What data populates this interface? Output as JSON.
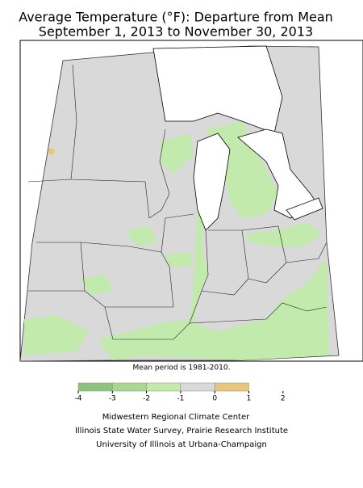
{
  "title": [
    "Average Temperature (°F): Departure from Mean",
    "September 1, 2013 to November 30, 2013"
  ],
  "note": "Mean period is 1981-2010.",
  "legend": {
    "ticks": [
      -4,
      -3,
      -2,
      -1,
      0,
      1,
      2
    ],
    "colors": [
      "#8fc27c",
      "#a8d892",
      "#c2eaad",
      "#d9d9d9",
      "#e8c77d"
    ]
  },
  "credits": [
    "Midwestern Regional Climate Center",
    "Illinois State Water Survey, Prairie Research Institute",
    "University of Illinois at Urbana-Champaign"
  ]
}
